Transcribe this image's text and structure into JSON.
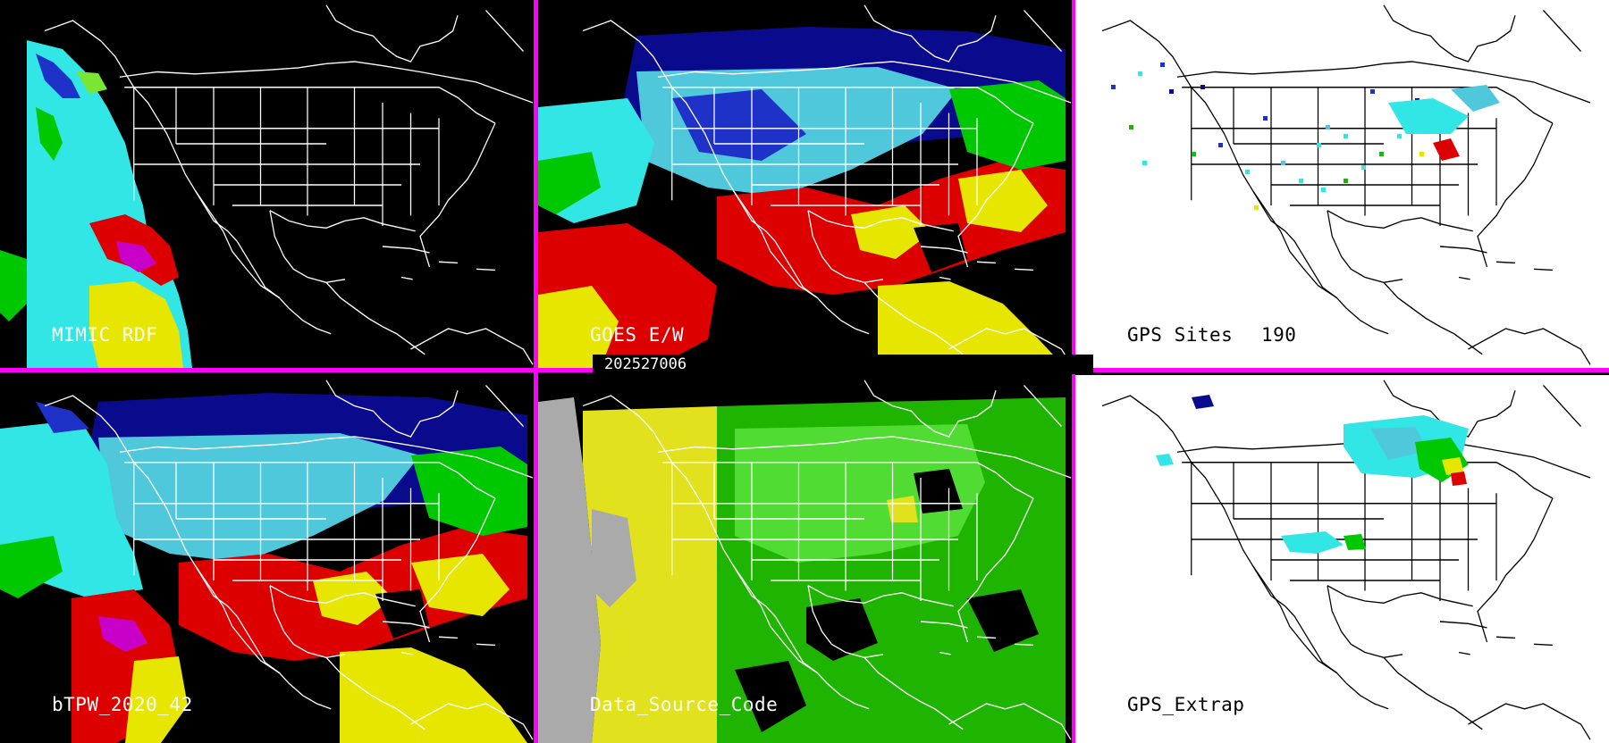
{
  "timestamp": "202527006",
  "separator_color": "#ff00ff",
  "panels": [
    {
      "id": "mimic",
      "label": "MIMIC RDF",
      "background": "#000000"
    },
    {
      "id": "goes",
      "label": "GOES E/W",
      "background": "#000000"
    },
    {
      "id": "gps_sites",
      "label": "GPS Sites",
      "count": "190",
      "background": "#ffffff"
    },
    {
      "id": "btpw",
      "label": "bTPW_2020_42",
      "background": "#000000"
    },
    {
      "id": "dsc",
      "label": "Data_Source_Code",
      "background": "#000000"
    },
    {
      "id": "gps_extrap",
      "label": "GPS_Extrap",
      "background": "#ffffff"
    }
  ],
  "tpw_palette": [
    "#0a0a8c",
    "#1e32c8",
    "#50c8dc",
    "#32e6e6",
    "#00c800",
    "#78e632",
    "#e6e600",
    "#dc0000",
    "#c800c8"
  ],
  "source_palette": [
    "#aaaaaa",
    "#e1e11e",
    "#1eb400",
    "#50dc32"
  ]
}
